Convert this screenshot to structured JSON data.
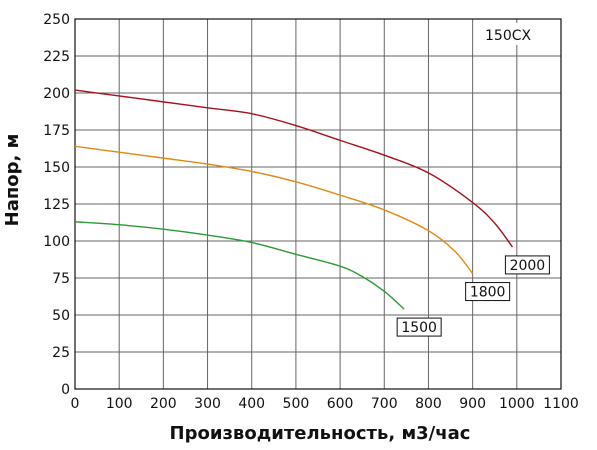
{
  "chart_data": {
    "type": "line",
    "title": "",
    "model_label": "150CX",
    "xlabel": "Производительность, м3/час",
    "ylabel": "Напор, м",
    "xlim": [
      0,
      1100
    ],
    "ylim": [
      0,
      250
    ],
    "xticks": [
      0,
      100,
      200,
      300,
      400,
      500,
      600,
      700,
      800,
      900,
      1000,
      1100
    ],
    "yticks": [
      0,
      25,
      50,
      75,
      100,
      125,
      150,
      175,
      200,
      225,
      250
    ],
    "grid": true,
    "series": [
      {
        "name": "2000",
        "color": "#aa0f1e",
        "x": [
          0,
          100,
          200,
          300,
          400,
          500,
          600,
          700,
          800,
          900,
          950,
          990
        ],
        "y": [
          202,
          198,
          194,
          190,
          186,
          178,
          168,
          158,
          146,
          126,
          112,
          96
        ]
      },
      {
        "name": "1800",
        "color": "#e08a12",
        "x": [
          0,
          100,
          200,
          300,
          400,
          500,
          600,
          700,
          800,
          860,
          900
        ],
        "y": [
          164,
          160,
          156,
          152,
          147,
          140,
          131,
          121,
          107,
          93,
          78
        ]
      },
      {
        "name": "1500",
        "color": "#2d9a36",
        "x": [
          0,
          100,
          200,
          300,
          400,
          500,
          600,
          650,
          700,
          745
        ],
        "y": [
          113,
          111,
          108,
          104,
          99,
          91,
          83,
          76,
          66,
          54
        ]
      }
    ]
  }
}
